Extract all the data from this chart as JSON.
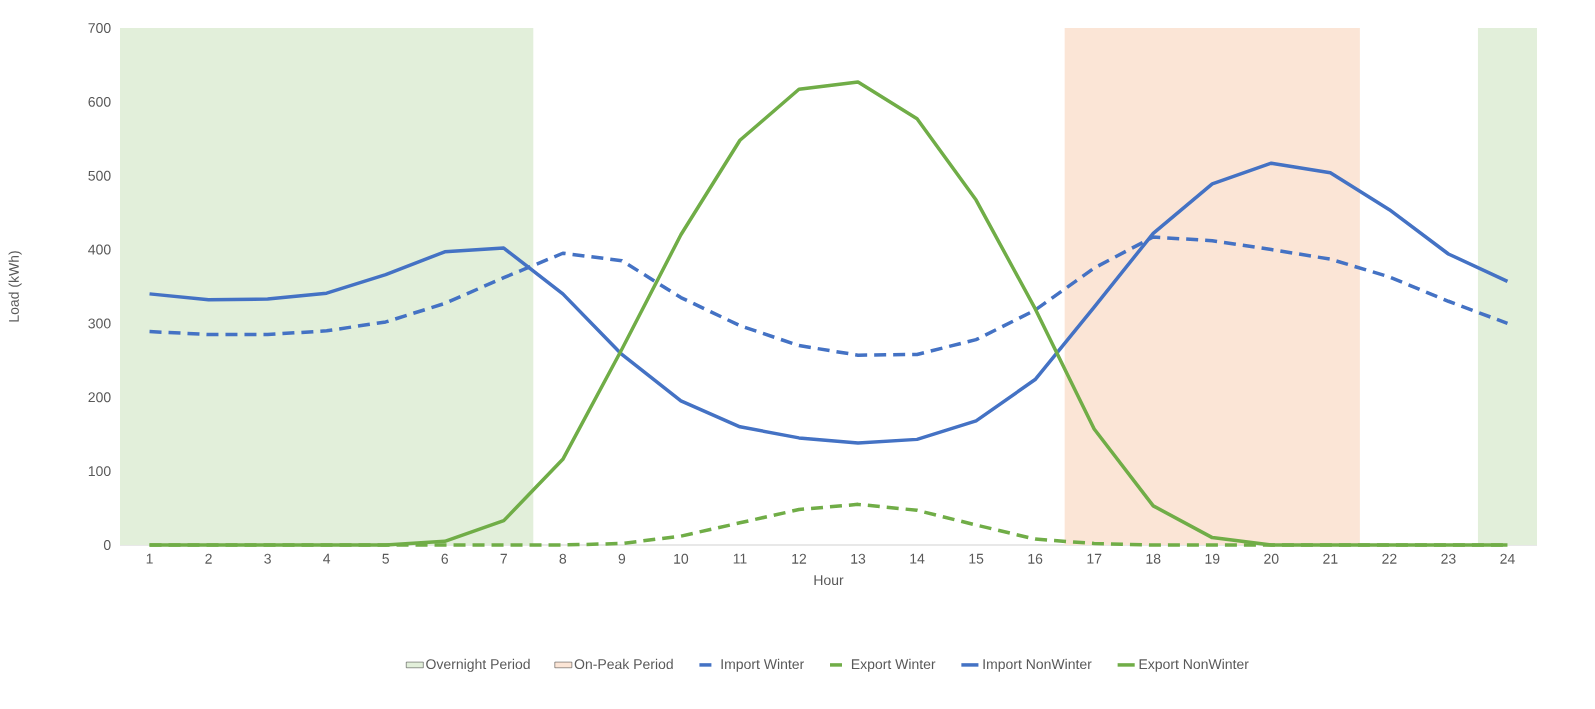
{
  "chart_data": {
    "type": "line",
    "xlabel": "Hour",
    "ylabel": "Load (kWh)",
    "x": [
      1,
      2,
      3,
      4,
      5,
      6,
      7,
      8,
      9,
      10,
      11,
      12,
      13,
      14,
      15,
      16,
      17,
      18,
      19,
      20,
      21,
      22,
      23,
      24
    ],
    "xlim": [
      0.5,
      24.5
    ],
    "xticks": [
      1,
      2,
      3,
      4,
      5,
      6,
      7,
      8,
      9,
      10,
      11,
      12,
      13,
      14,
      15,
      16,
      17,
      18,
      19,
      20,
      21,
      22,
      23,
      24
    ],
    "ylim": [
      0,
      700
    ],
    "yticks": [
      0,
      100,
      200,
      300,
      400,
      500,
      600,
      700
    ],
    "legend": "bottom",
    "marker": "none",
    "bands": [
      {
        "axis": "x",
        "from": 0.5,
        "to": 7.5,
        "label": "Overnight Period",
        "color": "#e2efda"
      },
      {
        "axis": "x",
        "from": 16.5,
        "to": 21.5,
        "label": "On-Peak Period",
        "color": "#fbe5d6"
      },
      {
        "axis": "x",
        "from": 23.5,
        "to": 24.5,
        "color": "#e2efda"
      }
    ],
    "series": [
      {
        "name": "Import Winter",
        "color": "#4472c4",
        "line_style": "dashed",
        "values": [
          289,
          285,
          285,
          290,
          302,
          327,
          362,
          395,
          385,
          335,
          297,
          270,
          257,
          258,
          278,
          318,
          375,
          417,
          412,
          400,
          387,
          363,
          330,
          300
        ]
      },
      {
        "name": "Export Winter",
        "color": "#70ad47",
        "line_style": "dashed",
        "values": [
          0,
          0,
          0,
          0,
          0,
          0,
          0,
          0,
          2,
          12,
          30,
          48,
          55,
          47,
          27,
          8,
          2,
          0,
          0,
          0,
          0,
          0,
          0,
          0
        ]
      },
      {
        "name": "Import NonWinter",
        "color": "#4472c4",
        "line_style": "solid",
        "values": [
          340,
          332,
          333,
          341,
          366,
          397,
          402,
          340,
          258,
          195,
          160,
          145,
          138,
          143,
          168,
          224,
          322,
          422,
          489,
          517,
          504,
          454,
          394,
          357
        ]
      },
      {
        "name": "Export NonWinter",
        "color": "#70ad47",
        "line_style": "solid",
        "values": [
          0,
          0,
          0,
          0,
          0,
          5,
          33,
          116,
          265,
          420,
          548,
          617,
          627,
          577,
          467,
          320,
          157,
          53,
          10,
          0,
          0,
          0,
          0,
          0
        ]
      }
    ]
  }
}
